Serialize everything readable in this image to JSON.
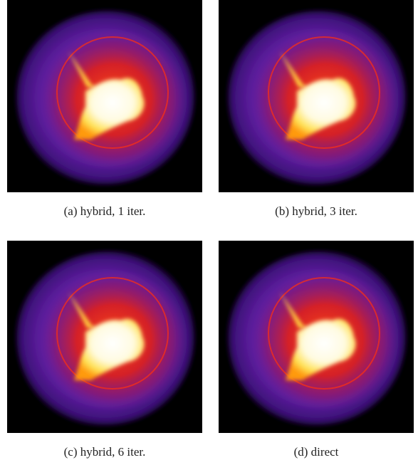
{
  "panels": [
    {
      "caption": "(a) hybrid, 1 iter."
    },
    {
      "caption": "(b) hybrid, 3 iter."
    },
    {
      "caption": "(c) hybrid, 6 iter."
    },
    {
      "caption": "(d) direct"
    }
  ]
}
